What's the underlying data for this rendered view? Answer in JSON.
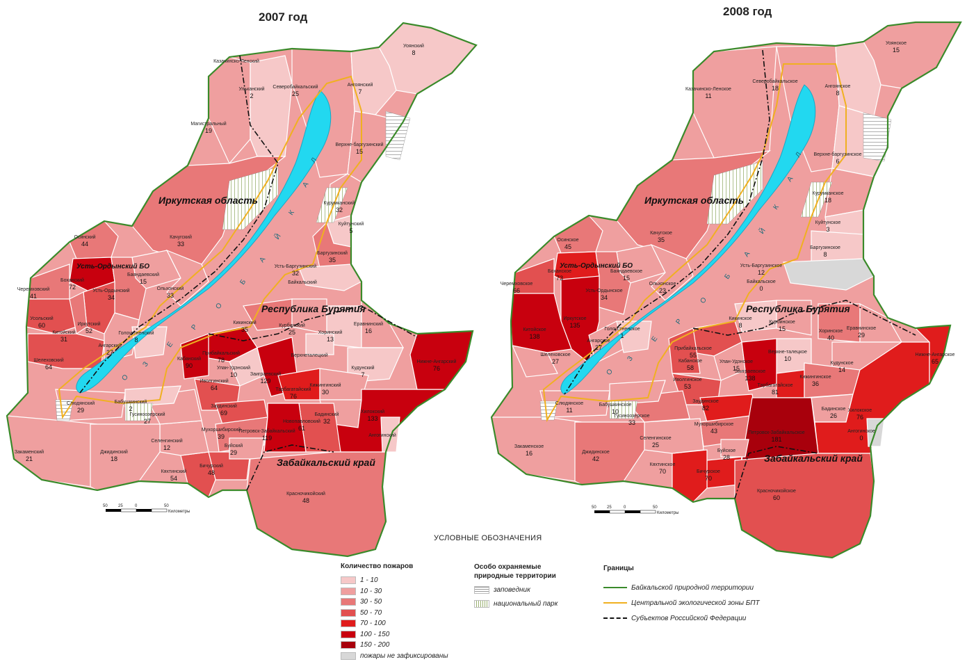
{
  "maps": [
    {
      "title": "2007 год",
      "labels": {
        "irkutsk": "Иркутская область",
        "buryatia": "Республика Бурятия",
        "zabaikalsky": "Забайкальский край",
        "ust_orda": "Усть-Ордынский БО"
      },
      "districts": [
        {
          "name": "Казачинско-Ленский",
          "value": ""
        },
        {
          "name": "Ульканский",
          "value": "2"
        },
        {
          "name": "Магистральный",
          "value": "19"
        },
        {
          "name": "Северобайкальский",
          "value": "25"
        },
        {
          "name": "Уоянский",
          "value": "8"
        },
        {
          "name": "Ангоянский",
          "value": "7"
        },
        {
          "name": "Верхне-баргузинский",
          "value": "15"
        },
        {
          "name": "Курумканский",
          "value": "32"
        },
        {
          "name": "Куйтунский",
          "value": "5"
        },
        {
          "name": "Баргузинский",
          "value": "35"
        },
        {
          "name": "Усть-Баргузинский",
          "value": "32"
        },
        {
          "name": "Байкальский",
          "value": ""
        },
        {
          "name": "Качугский",
          "value": "33"
        },
        {
          "name": "Осинский",
          "value": "44"
        },
        {
          "name": "Боханский",
          "value": "72"
        },
        {
          "name": "Черемховский",
          "value": "41"
        },
        {
          "name": "Баяндаевский",
          "value": "15"
        },
        {
          "name": "Ольхонский",
          "value": "33"
        },
        {
          "name": "Усть-Ордынский",
          "value": "34"
        },
        {
          "name": "Усольский",
          "value": "60"
        },
        {
          "name": "Иркутский",
          "value": "52"
        },
        {
          "name": "Китойский",
          "value": "31"
        },
        {
          "name": "Шелеховский",
          "value": "64"
        },
        {
          "name": "Ангарский",
          "value": "27"
        },
        {
          "name": "Голоустненский",
          "value": "8"
        },
        {
          "name": "Кикинский",
          "value": "35"
        },
        {
          "name": "Курбинский",
          "value": "25"
        },
        {
          "name": "Хоринский",
          "value": "13"
        },
        {
          "name": "Еравнинский",
          "value": "16"
        },
        {
          "name": "Верхнеталецкий",
          "value": ""
        },
        {
          "name": "Кудунский",
          "value": "7"
        },
        {
          "name": "Прибайкальский",
          "value": "78"
        },
        {
          "name": "Кабанский",
          "value": "90"
        },
        {
          "name": "Улан-Удэнский",
          "value": "10"
        },
        {
          "name": "Заиграевский",
          "value": "129"
        },
        {
          "name": "Иволгинский",
          "value": "64"
        },
        {
          "name": "Тарбагатайский",
          "value": "76"
        },
        {
          "name": "Кижингинский",
          "value": "30"
        },
        {
          "name": "Бадинский",
          "value": "32"
        },
        {
          "name": "Хилокский",
          "value": "133"
        },
        {
          "name": "Нижне-Ангарский",
          "value": "76"
        },
        {
          "name": "Заудинский",
          "value": "69"
        },
        {
          "name": "Мухоршибирский",
          "value": "39"
        },
        {
          "name": "Новопавловский",
          "value": "61"
        },
        {
          "name": "Петровск-Забайкальский",
          "value": "119"
        },
        {
          "name": "Бичурский",
          "value": "48"
        },
        {
          "name": "Буйский",
          "value": "29"
        },
        {
          "name": "Кяхтинский",
          "value": "54"
        },
        {
          "name": "Селенгинский",
          "value": "12"
        },
        {
          "name": "Гусиноозерский",
          "value": "27"
        },
        {
          "name": "Бабушкинский",
          "value": "2"
        },
        {
          "name": "Слюдянский",
          "value": "29"
        },
        {
          "name": "Закаменский",
          "value": "21"
        },
        {
          "name": "Джидинский",
          "value": "18"
        },
        {
          "name": "Красночикойский",
          "value": "48"
        },
        {
          "name": "Ангогинский",
          "value": ""
        }
      ]
    },
    {
      "title": "2008 год",
      "labels": {
        "irkutsk": "Иркутская область",
        "buryatia": "Республика Бурятия",
        "zabaikalsky": "Забайкальский край",
        "ust_orda": "Усть-Ордынский БО"
      },
      "districts": [
        {
          "name": "Казачинско-Ленское",
          "value": "11"
        },
        {
          "name": "Северобайкальское",
          "value": "18"
        },
        {
          "name": "Уоянское",
          "value": "15"
        },
        {
          "name": "Ангоянское",
          "value": "8"
        },
        {
          "name": "Верхне-баргузинское",
          "value": "6"
        },
        {
          "name": "Курумканское",
          "value": "18"
        },
        {
          "name": "Куйтунское",
          "value": "3"
        },
        {
          "name": "Баргузинское",
          "value": "8"
        },
        {
          "name": "Усть-Баргузинское",
          "value": "12"
        },
        {
          "name": "Байкальское",
          "value": "0"
        },
        {
          "name": "Качугское",
          "value": "35"
        },
        {
          "name": "Осинское",
          "value": "45"
        },
        {
          "name": "Боханское",
          "value": "73"
        },
        {
          "name": "Черемховское",
          "value": "66"
        },
        {
          "name": "Баяндаевское",
          "value": "15"
        },
        {
          "name": "Ольхонское",
          "value": "23"
        },
        {
          "name": "Усть-Ордынское",
          "value": "34"
        },
        {
          "name": "Иркутское",
          "value": "135"
        },
        {
          "name": "Китойское",
          "value": "138"
        },
        {
          "name": "Шелеховское",
          "value": "27"
        },
        {
          "name": "Ангарское",
          "value": "27"
        },
        {
          "name": "Голоустненское",
          "value": "1"
        },
        {
          "name": "Кикинское",
          "value": "8"
        },
        {
          "name": "Курбинское",
          "value": "15"
        },
        {
          "name": "Хоринское",
          "value": "40"
        },
        {
          "name": "Еравнинское",
          "value": "29"
        },
        {
          "name": "Верхне-талецкое",
          "value": "10"
        },
        {
          "name": "Кудунское",
          "value": "14"
        },
        {
          "name": "Прибайкальское",
          "value": "55"
        },
        {
          "name": "Кабанское",
          "value": "58"
        },
        {
          "name": "Улан-Удэнское",
          "value": "15"
        },
        {
          "name": "Заиграевское",
          "value": "138"
        },
        {
          "name": "Иволгинское",
          "value": "53"
        },
        {
          "name": "Тарбагатайское",
          "value": "81"
        },
        {
          "name": "Кижингинское",
          "value": "36"
        },
        {
          "name": "Бадинское",
          "value": "26"
        },
        {
          "name": "Хилокское",
          "value": "76"
        },
        {
          "name": "Нижне-Ангарское",
          "value": "65"
        },
        {
          "name": "Заудинское",
          "value": "82"
        },
        {
          "name": "Мухоршибирское",
          "value": "43"
        },
        {
          "name": "Петровск-Забайкальское",
          "value": "181"
        },
        {
          "name": "Бичурское",
          "value": "70"
        },
        {
          "name": "Буйское",
          "value": "28"
        },
        {
          "name": "Кяхтинское",
          "value": "70"
        },
        {
          "name": "Селенгинское",
          "value": "25"
        },
        {
          "name": "Гусиноозерское",
          "value": "33"
        },
        {
          "name": "Бабушкинское",
          "value": "10"
        },
        {
          "name": "Слюдянское",
          "value": "11"
        },
        {
          "name": "Закаменское",
          "value": "16"
        },
        {
          "name": "Джидинское",
          "value": "42"
        },
        {
          "name": "Красночикойское",
          "value": "60"
        },
        {
          "name": "Ангогинское",
          "value": "0"
        }
      ]
    }
  ],
  "scale": {
    "ticks": [
      "50",
      "25",
      "0",
      "50"
    ],
    "unit": "Километры"
  },
  "lake_letters": [
    "О",
    "З",
    "Е",
    "Р",
    "О",
    "Б",
    "А",
    "Й",
    "К",
    "А",
    "Л"
  ],
  "legend": {
    "title": "УСЛОВНЫЕ ОБОЗНАЧЕНИЯ",
    "fires": {
      "heading": "Количество пожаров",
      "classes": [
        {
          "label": "1 - 10",
          "color": "#f6c8c8"
        },
        {
          "label": "10 - 30",
          "color": "#ef9f9f"
        },
        {
          "label": "30 - 50",
          "color": "#e87878"
        },
        {
          "label": "50 - 70",
          "color": "#e25050"
        },
        {
          "label": "70 - 100",
          "color": "#e01c1c"
        },
        {
          "label": "100 - 150",
          "color": "#c8000e"
        },
        {
          "label": "150 - 200",
          "color": "#a8000c"
        },
        {
          "label": "пожары не зафиксированы",
          "color": "#d8d8d8"
        }
      ]
    },
    "protected": {
      "heading_line1": "Особо охраняемые",
      "heading_line2": "природные территории",
      "items": [
        {
          "label": "заповедник",
          "pattern": "horizontal-hatch"
        },
        {
          "label": "национальный парк",
          "pattern": "vertical-hatch"
        }
      ]
    },
    "borders": {
      "heading": "Границы",
      "items": [
        {
          "label": "Байкальской природной территории",
          "color": "#3a8a2a",
          "style": "solid"
        },
        {
          "label": "Центральной экологической зоны БПТ",
          "color": "#f0b020",
          "style": "solid"
        },
        {
          "label": "Субъектов Российской Федерации",
          "color": "#111111",
          "style": "dash-dot"
        }
      ]
    }
  }
}
